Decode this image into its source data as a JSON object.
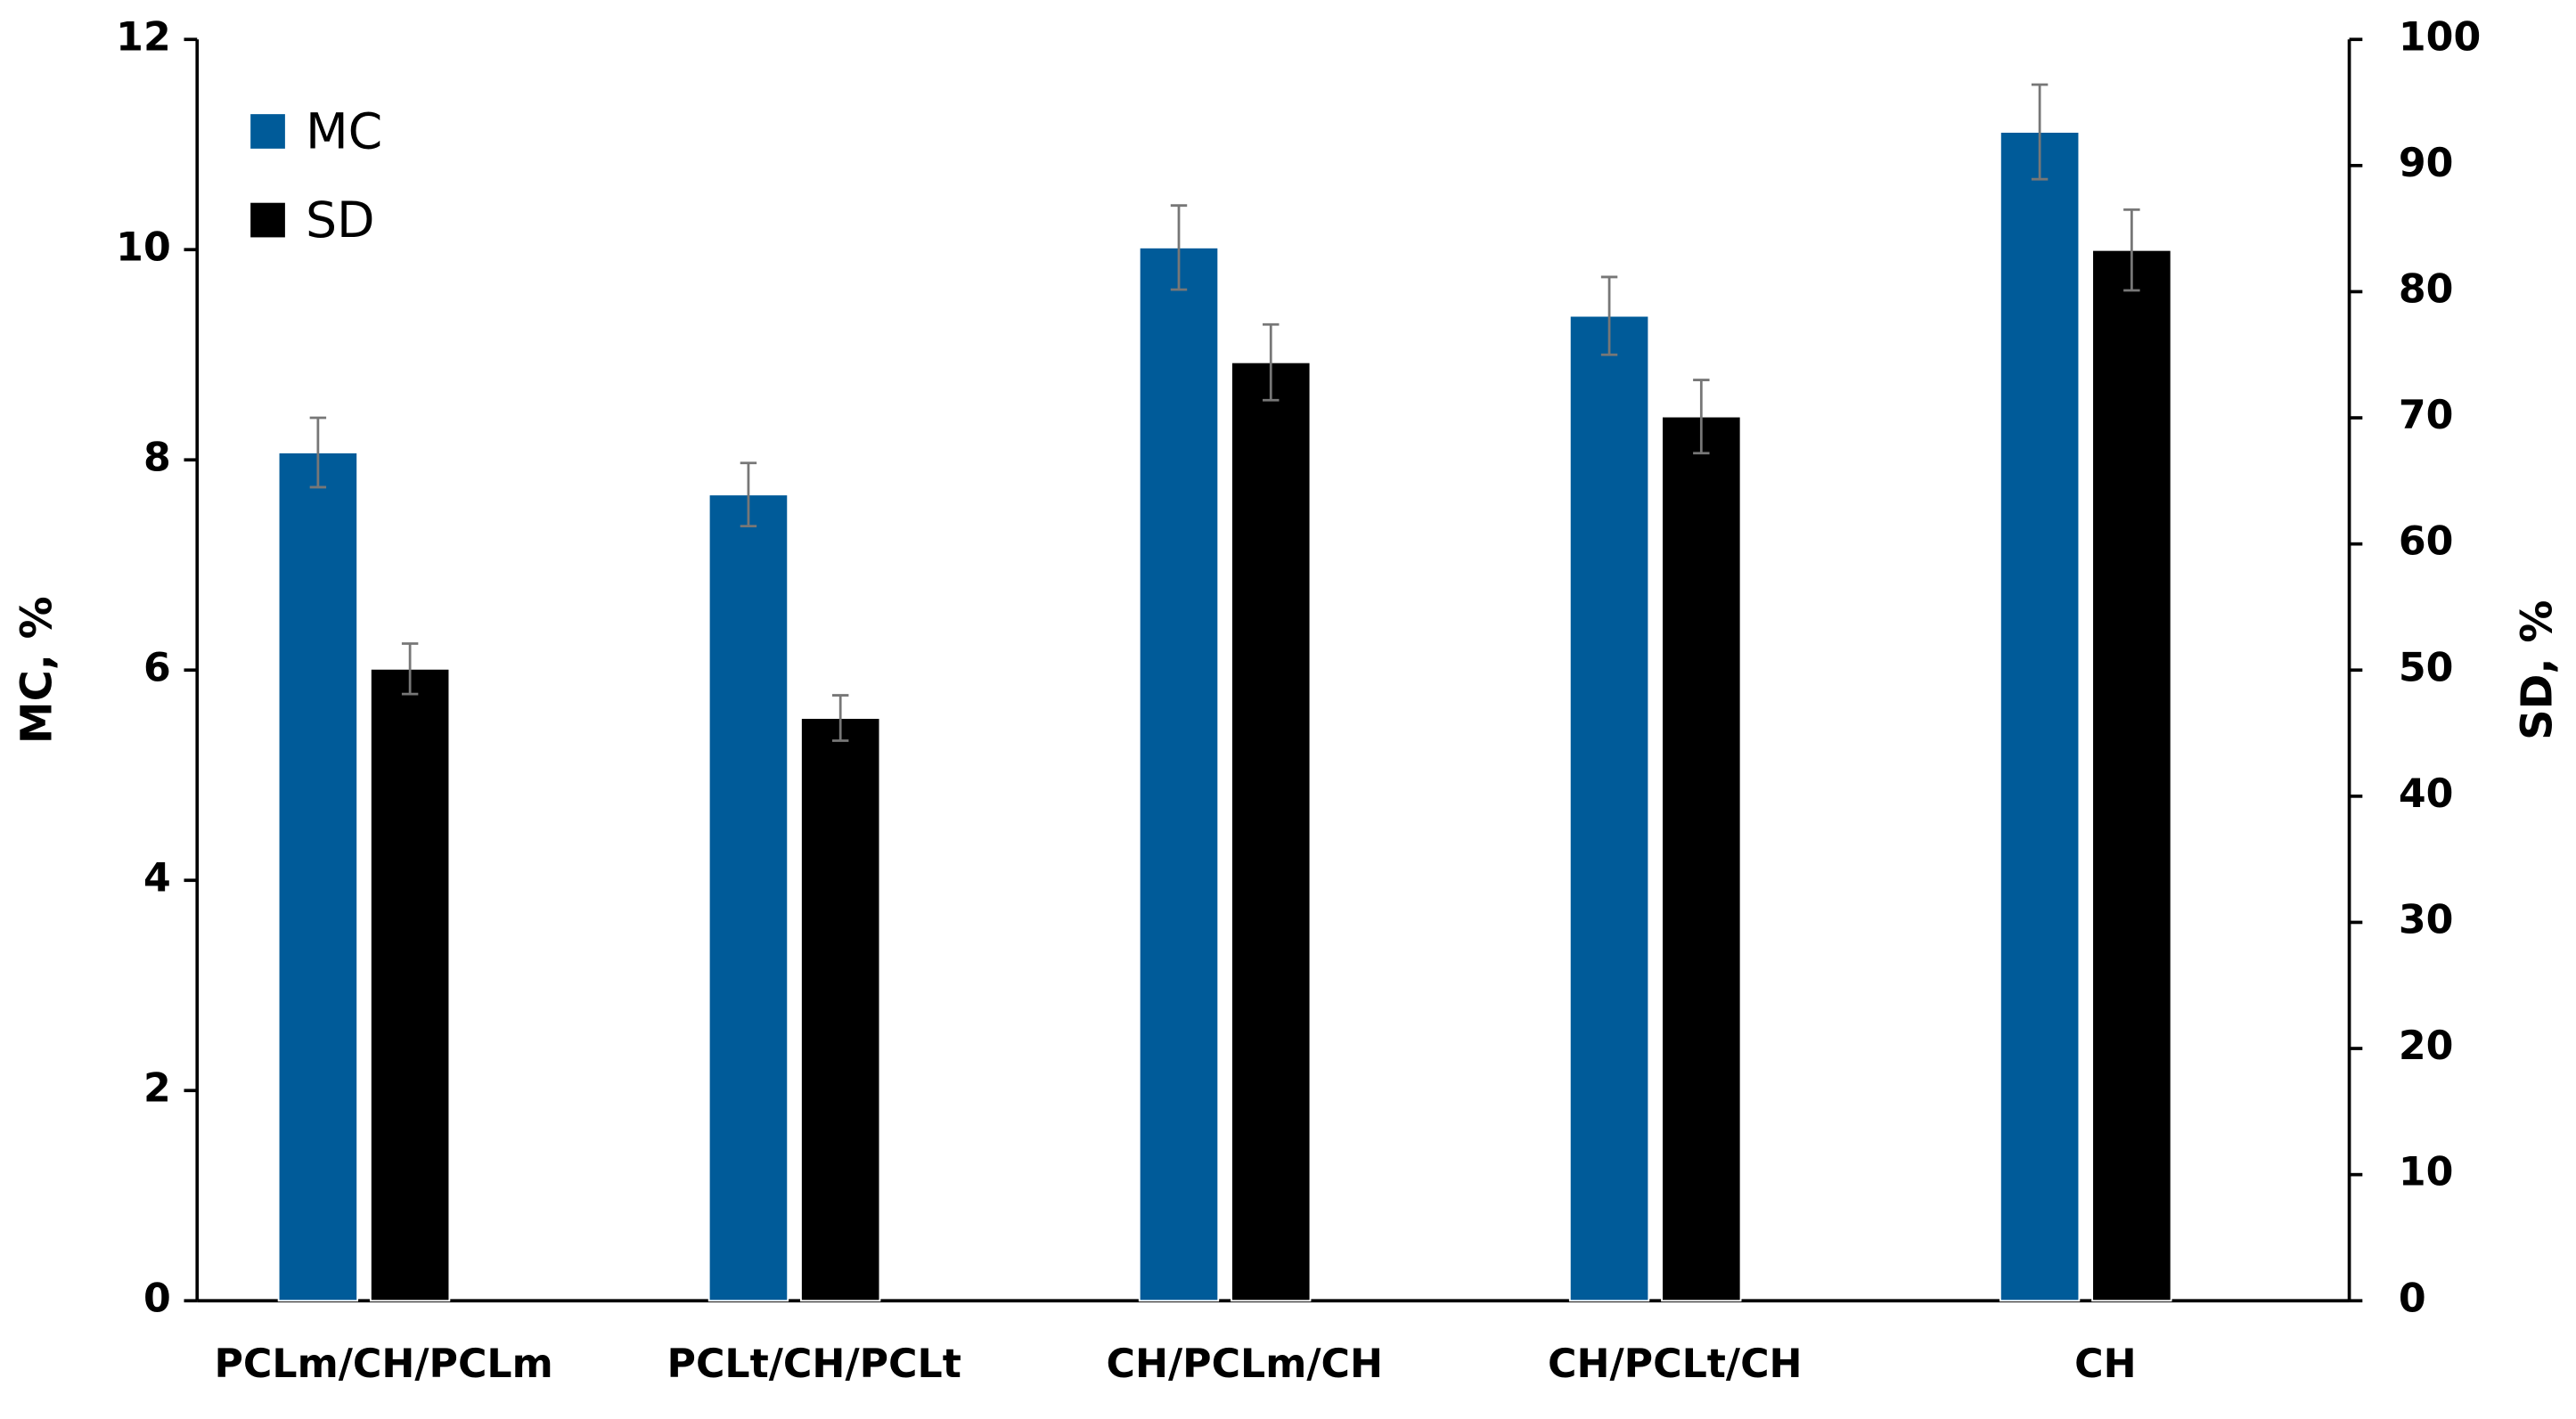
{
  "chart_data": {
    "type": "bar",
    "categories": [
      "PCLm/CH/PCLm",
      "PCLt/CH/PCLt",
      "CH/PCLm/CH",
      "CH/PCLt/CH",
      "CH"
    ],
    "series": [
      {
        "name": "MC",
        "color": "#005b99",
        "values": [
          8.07,
          7.67,
          10.02,
          9.37,
          11.12
        ],
        "errors": [
          0.33,
          0.3,
          0.4,
          0.37,
          0.45
        ]
      },
      {
        "name": "SD",
        "color": "#000000",
        "axis": "y2",
        "values": [
          50.1,
          46.2,
          74.4,
          70.1,
          83.3
        ],
        "errors": [
          2.0,
          1.8,
          3.0,
          2.9,
          3.2
        ]
      }
    ],
    "y_label": "MC, %",
    "y2_label": "SD, %",
    "ylim": [
      0,
      12
    ],
    "yticks": [
      0,
      2,
      4,
      6,
      8,
      10,
      12
    ],
    "y2lim": [
      0,
      100
    ],
    "y2ticks": [
      0,
      10,
      20,
      30,
      40,
      50,
      60,
      70,
      80,
      90,
      100
    ],
    "legend": "upper left"
  }
}
